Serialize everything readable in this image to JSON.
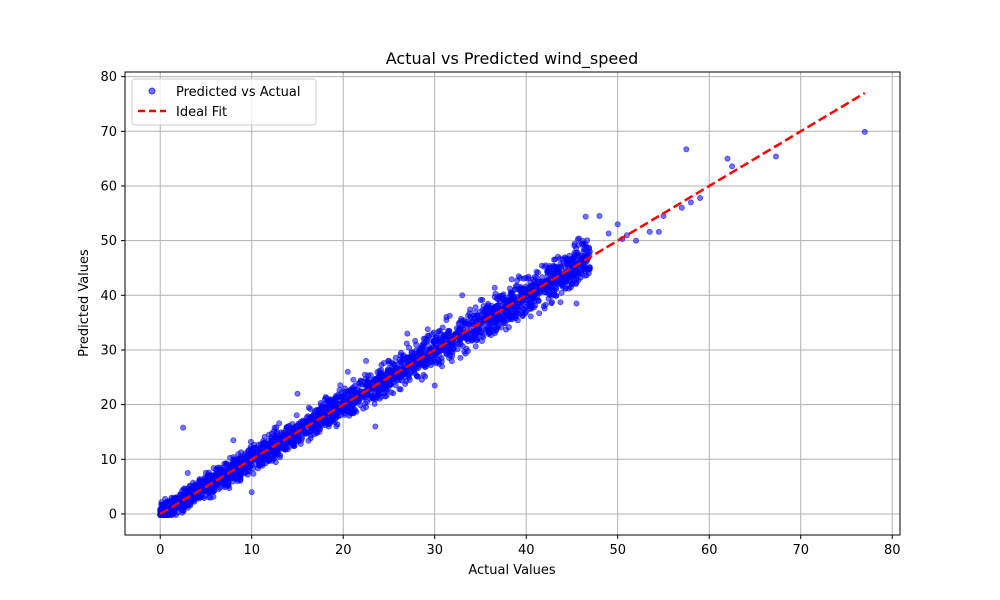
{
  "chart_data": {
    "type": "scatter",
    "title": "Actual vs Predicted wind_speed",
    "xlabel": "Actual Values",
    "ylabel": "Predicted Values",
    "xlim": [
      -3.85,
      80.85
    ],
    "ylim": [
      -3.85,
      80.85
    ],
    "xticks": [
      0,
      10,
      20,
      30,
      40,
      50,
      60,
      70,
      80
    ],
    "yticks": [
      0,
      10,
      20,
      30,
      40,
      50,
      60,
      70,
      80
    ],
    "grid": true,
    "legend_position": "top-left",
    "series": [
      {
        "name": "Predicted vs Actual",
        "kind": "scatter",
        "color": "#0000ff",
        "points": [
          [
            2.5,
            15.8
          ],
          [
            57.5,
            66.7
          ],
          [
            62.0,
            65.0
          ],
          [
            62.5,
            63.6
          ],
          [
            67.3,
            65.4
          ],
          [
            77.0,
            69.9
          ],
          [
            58.0,
            57.0
          ],
          [
            57.0,
            56.0
          ],
          [
            59.0,
            57.8
          ],
          [
            55.0,
            54.5
          ],
          [
            50.0,
            53.0
          ],
          [
            51.0,
            51.0
          ],
          [
            52.0,
            50.0
          ],
          [
            53.5,
            51.6
          ],
          [
            48.0,
            54.5
          ],
          [
            46.5,
            54.4
          ],
          [
            49.0,
            51.3
          ],
          [
            50.5,
            50.3
          ],
          [
            54.5,
            51.6
          ],
          [
            45.5,
            38.5
          ],
          [
            33.0,
            40.0
          ],
          [
            39.0,
            42.7
          ],
          [
            36.0,
            35.5
          ],
          [
            40.5,
            41.8
          ],
          [
            23.5,
            16.0
          ],
          [
            30.0,
            23.5
          ],
          [
            20.5,
            26.0
          ],
          [
            22.5,
            28.0
          ],
          [
            27.0,
            33.0
          ],
          [
            15.0,
            22.0
          ],
          [
            12.5,
            15.8
          ],
          [
            10.0,
            4.0
          ],
          [
            8.0,
            13.5
          ],
          [
            5.5,
            3.0
          ],
          [
            3.0,
            7.5
          ]
        ],
        "band": {
          "x_from": 0,
          "x_to": 47,
          "slope": 1.0,
          "spread": 1.5
        }
      },
      {
        "name": "Ideal Fit",
        "kind": "line",
        "color": "#ff0000",
        "dash": "dashed",
        "x": [
          0,
          77
        ],
        "y": [
          0,
          77
        ]
      }
    ]
  }
}
